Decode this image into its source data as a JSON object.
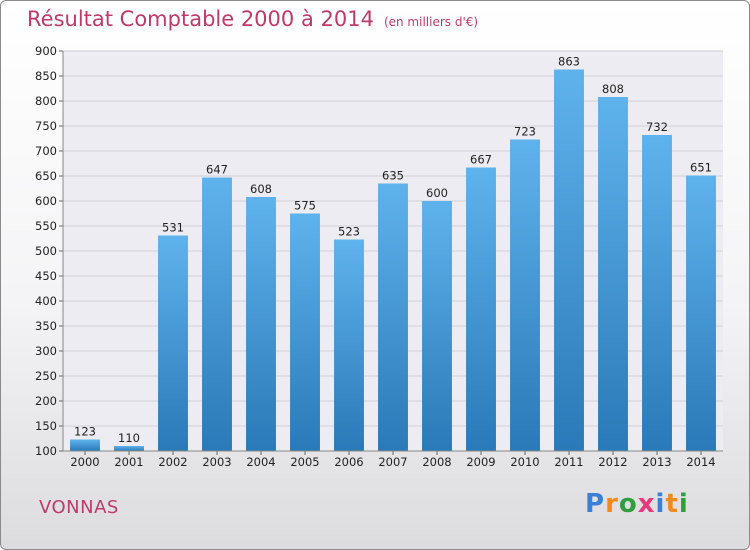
{
  "header": {
    "title": "Résultat Comptable 2000 à 2014",
    "unit": "(en milliers d'€)"
  },
  "footer": {
    "town": "VONNAS",
    "logo_letters": [
      "P",
      "r",
      "o",
      "x",
      "i",
      "t",
      "i"
    ],
    "logo_colors": [
      "#3b7fd6",
      "#f08a1c",
      "#2e9e3e",
      "#e23a7a",
      "#3b7fd6",
      "#f08a1c",
      "#2e9e3e"
    ]
  },
  "chart_data": {
    "type": "bar",
    "categories": [
      "2000",
      "2001",
      "2002",
      "2003",
      "2004",
      "2005",
      "2006",
      "2007",
      "2008",
      "2009",
      "2010",
      "2011",
      "2012",
      "2013",
      "2014"
    ],
    "values": [
      123,
      110,
      531,
      647,
      608,
      575,
      523,
      635,
      600,
      667,
      723,
      863,
      808,
      732,
      651
    ],
    "ylim": [
      100,
      900
    ],
    "yticks": [
      100,
      150,
      200,
      250,
      300,
      350,
      400,
      450,
      500,
      550,
      600,
      650,
      700,
      750,
      800,
      850,
      900
    ],
    "grid": true,
    "colors": {
      "bar_top": "#5fb3ec",
      "bar_bottom": "#2a79b8",
      "grid": "#cfcfd6",
      "plot_bg": "#ececf2"
    }
  }
}
